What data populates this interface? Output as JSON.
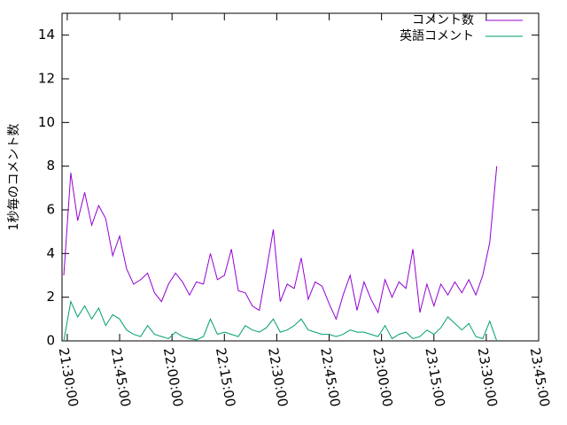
{
  "chart_data": {
    "type": "line",
    "ylabel": "1秒毎のコメント数",
    "x": [
      "21:29:00",
      "21:31:00",
      "21:33:00",
      "21:35:00",
      "21:37:00",
      "21:39:00",
      "21:41:00",
      "21:43:00",
      "21:45:00",
      "21:47:00",
      "21:49:00",
      "21:51:00",
      "21:53:00",
      "21:55:00",
      "21:57:00",
      "21:59:00",
      "22:01:00",
      "22:03:00",
      "22:05:00",
      "22:07:00",
      "22:09:00",
      "22:11:00",
      "22:13:00",
      "22:15:00",
      "22:17:00",
      "22:19:00",
      "22:21:00",
      "22:23:00",
      "22:25:00",
      "22:27:00",
      "22:29:00",
      "22:31:00",
      "22:33:00",
      "22:35:00",
      "22:37:00",
      "22:39:00",
      "22:41:00",
      "22:43:00",
      "22:45:00",
      "22:47:00",
      "22:49:00",
      "22:51:00",
      "22:53:00",
      "22:55:00",
      "22:57:00",
      "22:59:00",
      "23:01:00",
      "23:03:00",
      "23:05:00",
      "23:07:00",
      "23:09:00",
      "23:11:00",
      "23:13:00",
      "23:15:00",
      "23:17:00",
      "23:19:00",
      "23:21:00",
      "23:23:00",
      "23:25:00",
      "23:27:00",
      "23:29:00",
      "23:31:00",
      "23:33:00"
    ],
    "series": [
      {
        "name": "コメント数",
        "color": "#9400d3",
        "values": [
          3.0,
          7.7,
          5.5,
          6.8,
          5.3,
          6.2,
          5.6,
          3.9,
          4.8,
          3.3,
          2.6,
          2.8,
          3.1,
          2.2,
          1.8,
          2.6,
          3.1,
          2.7,
          2.1,
          2.7,
          2.6,
          4.0,
          2.8,
          3.0,
          4.2,
          2.3,
          2.2,
          1.6,
          1.4,
          3.2,
          5.1,
          1.8,
          2.6,
          2.4,
          3.8,
          1.9,
          2.7,
          2.5,
          1.7,
          1.0,
          2.1,
          3.0,
          1.4,
          2.7,
          1.9,
          1.3,
          2.8,
          2.0,
          2.7,
          2.4,
          4.2,
          1.3,
          2.6,
          1.6,
          2.6,
          2.1,
          2.7,
          2.2,
          2.8,
          2.1,
          3.0,
          4.5,
          8.0
        ]
      },
      {
        "name": "英語コメント",
        "color": "#009e73",
        "values": [
          0.0,
          1.8,
          1.1,
          1.6,
          1.0,
          1.5,
          0.7,
          1.2,
          1.0,
          0.5,
          0.3,
          0.2,
          0.7,
          0.3,
          0.2,
          0.1,
          0.4,
          0.2,
          0.1,
          0.05,
          0.2,
          1.0,
          0.3,
          0.4,
          0.3,
          0.2,
          0.7,
          0.5,
          0.4,
          0.6,
          1.0,
          0.4,
          0.5,
          0.7,
          1.0,
          0.5,
          0.4,
          0.3,
          0.3,
          0.2,
          0.3,
          0.5,
          0.4,
          0.4,
          0.3,
          0.2,
          0.7,
          0.1,
          0.3,
          0.4,
          0.1,
          0.2,
          0.5,
          0.3,
          0.6,
          1.1,
          0.8,
          0.5,
          0.8,
          0.2,
          0.1,
          0.9,
          0.0
        ]
      }
    ],
    "xlim": [
      "21:28:30",
      "23:45:00"
    ],
    "xticks": [
      "21:30:00",
      "21:45:00",
      "22:00:00",
      "22:15:00",
      "22:30:00",
      "22:45:00",
      "23:00:00",
      "23:15:00",
      "23:30:00",
      "23:45:00"
    ],
    "ylim": [
      0,
      15
    ],
    "yticks": [
      0,
      2,
      4,
      6,
      8,
      10,
      12,
      14
    ],
    "legend": "top-right"
  }
}
